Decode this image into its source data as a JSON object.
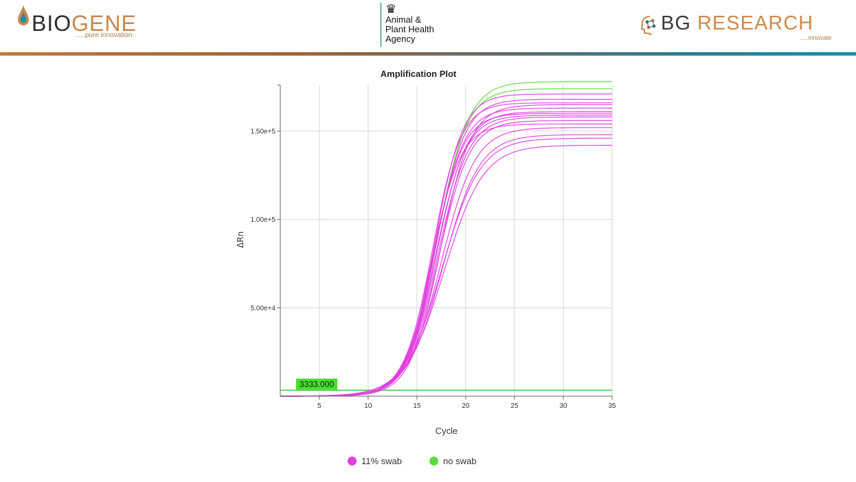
{
  "header": {
    "biogene": {
      "word_dark": "BIO",
      "word_accent": "GENE",
      "tagline": ".....pure innovation"
    },
    "apha": {
      "line1": "Animal &",
      "line2": "Plant Health",
      "line3": "Agency"
    },
    "bg_research": {
      "word_dark": "BG ",
      "word_accent": "RESEARCH",
      "tagline": ".....innovate"
    }
  },
  "colors": {
    "series_swab": "#e23ee0",
    "series_no_swab": "#5cdc3a",
    "threshold": "#3cc43c",
    "threshold_label_bg": "#44e02a",
    "divider_left": "#c27a3d",
    "divider_right": "#1a8fa8"
  },
  "chart_data": {
    "type": "line",
    "title": "Amplification Plot",
    "xlabel": "Cycle",
    "ylabel": "ΔRn",
    "xlim": [
      1,
      35
    ],
    "ylim": [
      0,
      176000
    ],
    "x_ticks": [
      5,
      10,
      15,
      20,
      25,
      30,
      35
    ],
    "y_ticks": [
      50000,
      100000,
      150000
    ],
    "y_tick_labels": [
      "5.00e+4",
      "1.00e+5",
      "1.50e+5"
    ],
    "threshold": {
      "value": 3333,
      "label": "3333.000"
    },
    "grid": true,
    "legend_position": "bottom",
    "legend": [
      {
        "name": "11% swab",
        "color": "#e23ee0"
      },
      {
        "name": "no swab",
        "color": "#5cdc3a"
      }
    ],
    "curve_model": "sigmoid",
    "series": [
      {
        "name": "11% swab",
        "color": "#e23ee0",
        "curves": [
          {
            "plateau": 166000,
            "midpoint": 16.6,
            "slope": 1.45
          },
          {
            "plateau": 168000,
            "midpoint": 16.9,
            "slope": 1.5
          },
          {
            "plateau": 163000,
            "midpoint": 16.8,
            "slope": 1.5
          },
          {
            "plateau": 161000,
            "midpoint": 17.0,
            "slope": 1.55
          },
          {
            "plateau": 160000,
            "midpoint": 16.7,
            "slope": 1.5
          },
          {
            "plateau": 158000,
            "midpoint": 17.1,
            "slope": 1.6
          },
          {
            "plateau": 171000,
            "midpoint": 16.8,
            "slope": 1.45
          },
          {
            "plateau": 156000,
            "midpoint": 17.2,
            "slope": 1.6
          },
          {
            "plateau": 154000,
            "midpoint": 16.5,
            "slope": 1.5
          },
          {
            "plateau": 165000,
            "midpoint": 17.4,
            "slope": 1.55
          },
          {
            "plateau": 159000,
            "midpoint": 16.9,
            "slope": 1.55
          },
          {
            "plateau": 152000,
            "midpoint": 17.5,
            "slope": 1.75
          },
          {
            "plateau": 148000,
            "midpoint": 17.7,
            "slope": 1.85
          },
          {
            "plateau": 142000,
            "midpoint": 17.8,
            "slope": 2.0
          },
          {
            "plateau": 146000,
            "midpoint": 17.6,
            "slope": 1.95
          }
        ]
      },
      {
        "name": "no swab",
        "color": "#5cdc3a",
        "curves": [
          {
            "plateau": 178000,
            "midpoint": 17.1,
            "slope": 1.6
          },
          {
            "plateau": 174000,
            "midpoint": 17.0,
            "slope": 1.55
          }
        ]
      }
    ]
  }
}
